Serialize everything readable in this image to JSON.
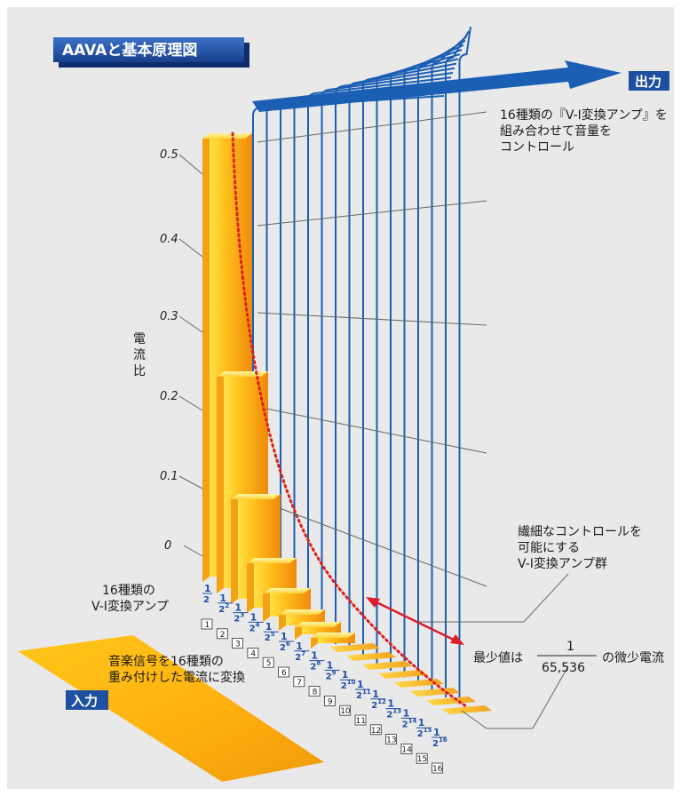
{
  "title": "AAVAと基本原理図",
  "output_label": "出力",
  "input_label": "入力",
  "callout_top": [
    "16種類の『V-I変換アンプ』を",
    "組み合わせて音量を",
    "コントロール"
  ],
  "callout_mid": [
    "繊細なコントロールを",
    "可能にする",
    "V-I変換アンプ群"
  ],
  "min_value": {
    "prefix": "最少値は",
    "numerator": "1",
    "denominator": "65,536",
    "suffix": "の微少電流"
  },
  "amp_label": [
    "16種類の",
    "V-I変換アンプ"
  ],
  "input_text": [
    "音楽信号を16種類の",
    "重み付けした電流に変換"
  ],
  "y_axis_label": [
    "電",
    "流",
    "比"
  ],
  "y_ticks": [
    "0.5",
    "0.4",
    "0.3",
    "0.2",
    "0.1",
    "0"
  ],
  "fractions": [
    {
      "num": "1",
      "base": "2",
      "exp": ""
    },
    {
      "num": "1",
      "base": "2",
      "exp": "2"
    },
    {
      "num": "1",
      "base": "2",
      "exp": "3"
    },
    {
      "num": "1",
      "base": "2",
      "exp": "4"
    },
    {
      "num": "1",
      "base": "2",
      "exp": "5"
    },
    {
      "num": "1",
      "base": "2",
      "exp": "6"
    },
    {
      "num": "1",
      "base": "2",
      "exp": "7"
    },
    {
      "num": "1",
      "base": "2",
      "exp": "8"
    },
    {
      "num": "1",
      "base": "2",
      "exp": "9"
    },
    {
      "num": "1",
      "base": "2",
      "exp": "10"
    },
    {
      "num": "1",
      "base": "2",
      "exp": "11"
    },
    {
      "num": "1",
      "base": "2",
      "exp": "12"
    },
    {
      "num": "1",
      "base": "2",
      "exp": "13"
    },
    {
      "num": "1",
      "base": "2",
      "exp": "14"
    },
    {
      "num": "1",
      "base": "2",
      "exp": "15"
    },
    {
      "num": "1",
      "base": "2",
      "exp": "16"
    }
  ],
  "bit_numbers": [
    "1",
    "2",
    "3",
    "4",
    "5",
    "6",
    "7",
    "8",
    "9",
    "10",
    "11",
    "12",
    "13",
    "14",
    "15",
    "16"
  ],
  "colors": {
    "blue": "#1a5fb4",
    "title_bg": "#1f4fa0",
    "bar_orange": "#f5a81c",
    "bar_light": "#ffd84d",
    "curve_red": "#e0201c",
    "arrow_red": "#e01c2a"
  }
}
